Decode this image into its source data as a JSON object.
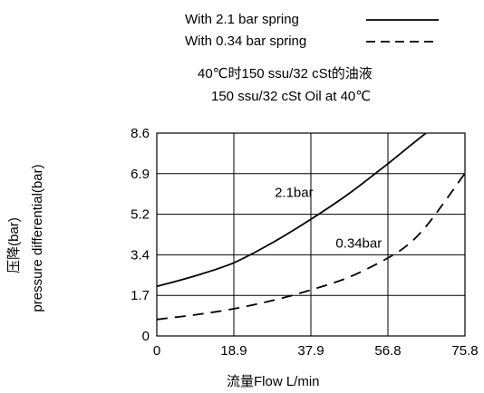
{
  "chart_data": {
    "type": "line",
    "subtitle_lines": [
      "40℃时150 ssu/32 cSt的油液",
      "150 ssu/32 cSt Oil at 40℃"
    ],
    "xlabel": "流量Flow  L/min",
    "ylabel_lines": [
      "压降(bar)",
      "pressure differential(bar)"
    ],
    "xlim": [
      0,
      75.8
    ],
    "ylim": [
      0,
      8.6
    ],
    "x_ticks": [
      "0",
      "18.9",
      "37.9",
      "56.8",
      "75.8"
    ],
    "y_ticks": [
      "0",
      "1.7",
      "3.4",
      "5.2",
      "6.9",
      "8.6"
    ],
    "grid": true,
    "legend_position": "top",
    "series": [
      {
        "name": "With 2.1 bar spring",
        "label": "2.1bar",
        "style": "solid",
        "x": [
          0,
          9.5,
          18.9,
          28.4,
          37.9,
          47.4,
          56.8,
          64,
          70
        ],
        "y": [
          2.1,
          2.55,
          3.1,
          3.95,
          4.95,
          6.05,
          7.3,
          8.3,
          9.1
        ]
      },
      {
        "name": "With 0.34 bar spring",
        "label": "0.34bar",
        "style": "dashed",
        "x": [
          0,
          9.5,
          18.9,
          28.4,
          37.9,
          47.4,
          56.8,
          62,
          66,
          70,
          75.8
        ],
        "y": [
          0.7,
          0.9,
          1.15,
          1.5,
          1.95,
          2.5,
          3.3,
          3.9,
          4.6,
          5.5,
          6.9
        ]
      }
    ]
  }
}
